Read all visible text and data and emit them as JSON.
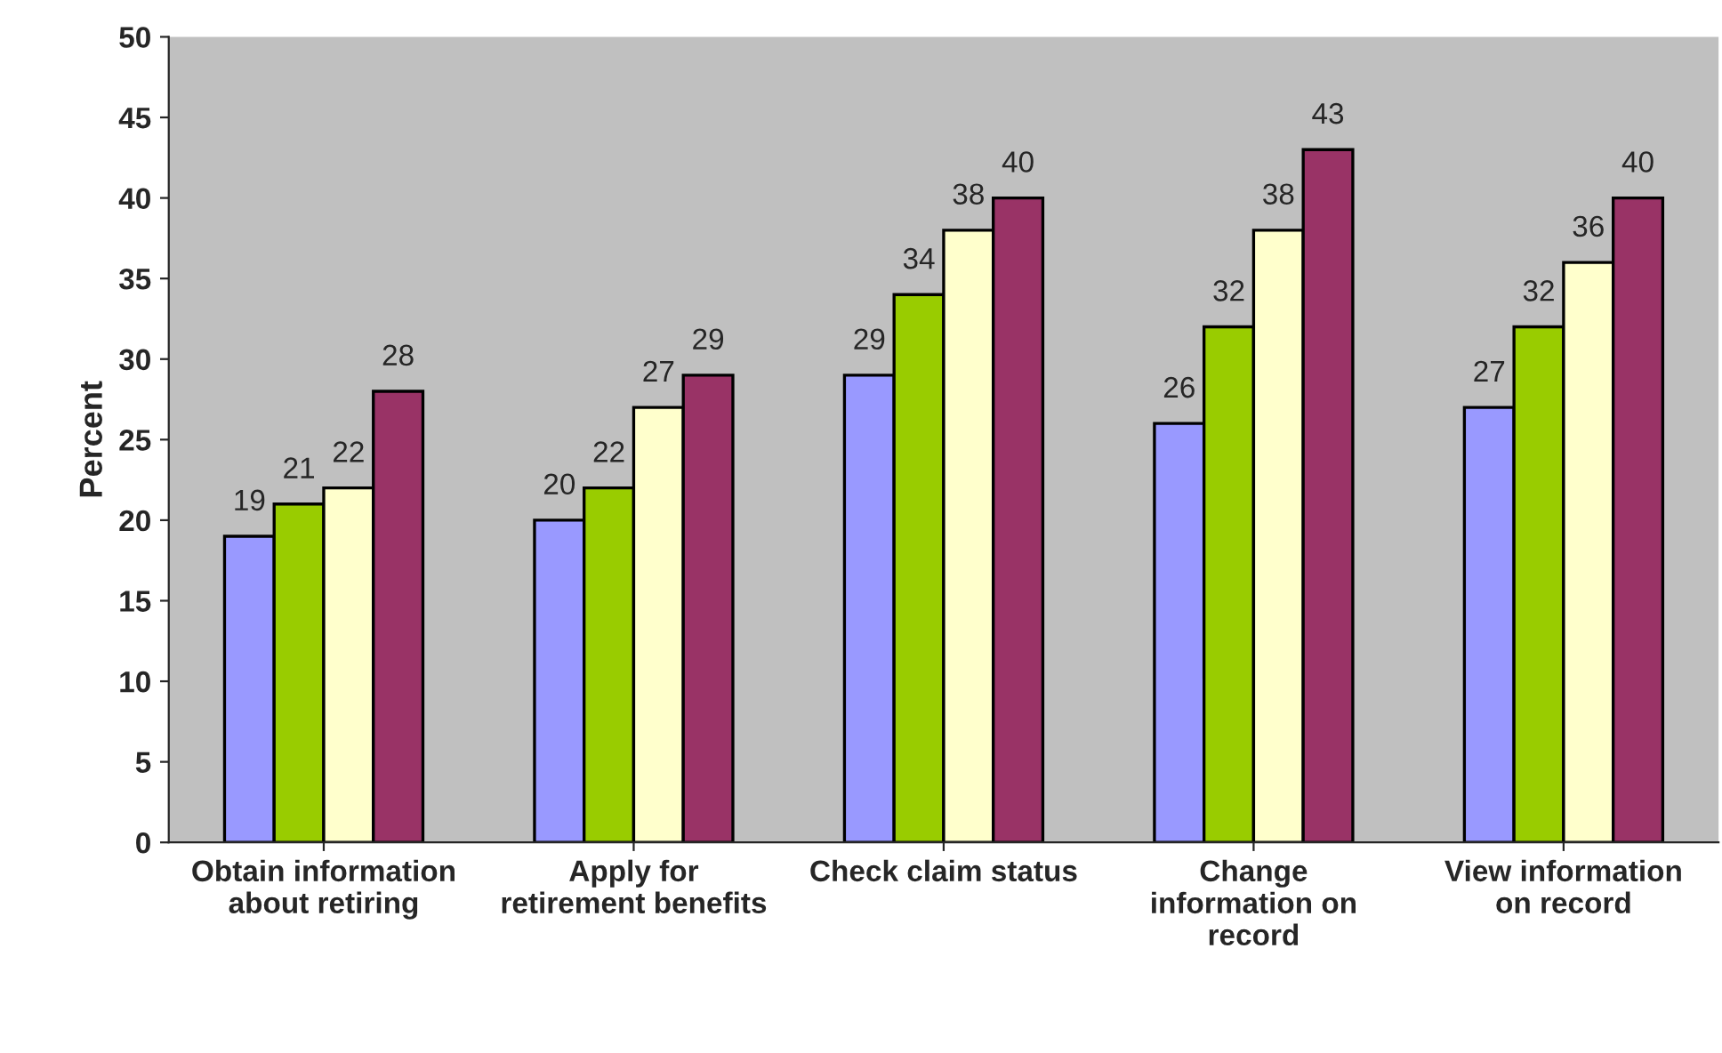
{
  "chart_data": {
    "type": "bar",
    "ylabel": "Percent",
    "categories": [
      "Obtain information\nabout retiring",
      "Apply for\nretirement benefits",
      "Check claim status",
      "Change\ninformation on\nrecord",
      "View information\non record"
    ],
    "series": [
      {
        "color": "#9999ff",
        "values": [
          19,
          20,
          29,
          26,
          27
        ]
      },
      {
        "color": "#99cc00",
        "values": [
          21,
          22,
          34,
          32,
          32
        ]
      },
      {
        "color": "#ffffcc",
        "values": [
          22,
          27,
          38,
          38,
          36
        ]
      },
      {
        "color": "#993366",
        "values": [
          28,
          29,
          40,
          43,
          40
        ]
      }
    ],
    "ylim": [
      0,
      50
    ],
    "yticks": [
      0,
      5,
      10,
      15,
      20,
      25,
      30,
      35,
      40,
      45,
      50
    ],
    "data_labels": true,
    "grid": false,
    "legend": false
  }
}
